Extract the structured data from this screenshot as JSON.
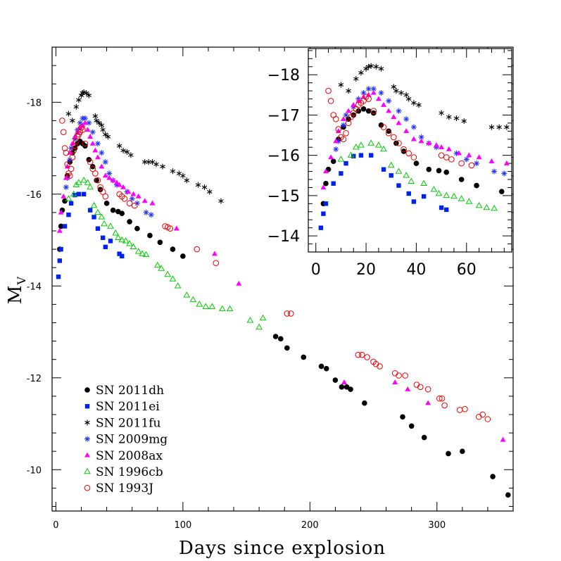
{
  "chart_data": {
    "type": "scatter",
    "xlabel": "Days since explosion",
    "ylabel": "M",
    "ylabel_subscript": "V",
    "xlim": [
      -3,
      360
    ],
    "ylim": [
      -9.1,
      -19.2
    ],
    "y_inverted": true,
    "xticks": [
      0,
      100,
      200,
      300
    ],
    "yticks": [
      -10,
      -12,
      -14,
      -16,
      -18
    ],
    "legend_position": "bottom-left",
    "series": [
      {
        "name": "SN 2011dh",
        "marker": "filled-circle",
        "color": "#000000",
        "points": [
          [
            3,
            -14.8
          ],
          [
            4,
            -15.3
          ],
          [
            5,
            -15.65
          ],
          [
            7,
            -15.85
          ],
          [
            9,
            -16.4
          ],
          [
            11,
            -16.7
          ],
          [
            13,
            -16.9
          ],
          [
            15,
            -17.0
          ],
          [
            17,
            -17.1
          ],
          [
            19,
            -17.15
          ],
          [
            21,
            -17.1
          ],
          [
            23,
            -17.05
          ],
          [
            26,
            -16.75
          ],
          [
            29,
            -16.6
          ],
          [
            32,
            -16.3
          ],
          [
            35,
            -16.1
          ],
          [
            40,
            -15.8
          ],
          [
            45,
            -15.65
          ],
          [
            49,
            -15.62
          ],
          [
            52,
            -15.58
          ],
          [
            58,
            -15.4
          ],
          [
            64,
            -15.25
          ],
          [
            74,
            -15.1
          ],
          [
            82,
            -14.95
          ],
          [
            92,
            -14.8
          ],
          [
            100,
            -14.65
          ],
          [
            173,
            -12.9
          ],
          [
            177,
            -12.85
          ],
          [
            182,
            -12.65
          ],
          [
            195,
            -12.45
          ],
          [
            209,
            -12.25
          ],
          [
            213,
            -12.2
          ],
          [
            220,
            -11.95
          ],
          [
            225,
            -11.8
          ],
          [
            229,
            -11.8
          ],
          [
            232,
            -11.75
          ],
          [
            243,
            -11.45
          ],
          [
            273,
            -11.15
          ],
          [
            280,
            -10.95
          ],
          [
            290,
            -10.7
          ],
          [
            309,
            -10.35
          ],
          [
            320,
            -10.4
          ],
          [
            344,
            -9.85
          ],
          [
            356,
            -9.45
          ]
        ]
      },
      {
        "name": "SN 2011ei",
        "marker": "filled-square",
        "color": "#0022ee",
        "points": [
          [
            2,
            -14.2
          ],
          [
            3,
            -14.55
          ],
          [
            4,
            -14.8
          ],
          [
            7,
            -15.3
          ],
          [
            10,
            -15.55
          ],
          [
            12,
            -15.8
          ],
          [
            15,
            -15.98
          ],
          [
            18,
            -16.0
          ],
          [
            22,
            -16.0
          ],
          [
            27,
            -15.65
          ],
          [
            30,
            -15.5
          ],
          [
            33,
            -15.25
          ],
          [
            37,
            -15.05
          ],
          [
            39,
            -14.85
          ],
          [
            43,
            -14.98
          ],
          [
            50,
            -14.7
          ],
          [
            52,
            -14.65
          ]
        ]
      },
      {
        "name": "SN 2011fu",
        "marker": "asterisk",
        "color": "#000000",
        "points": [
          [
            10,
            -17.75
          ],
          [
            13,
            -17.6
          ],
          [
            16,
            -17.9
          ],
          [
            18,
            -18.05
          ],
          [
            20,
            -18.15
          ],
          [
            21,
            -18.2
          ],
          [
            22,
            -18.22
          ],
          [
            24,
            -18.2
          ],
          [
            26,
            -18.15
          ],
          [
            31,
            -17.7
          ],
          [
            32,
            -17.6
          ],
          [
            34,
            -17.55
          ],
          [
            36,
            -17.5
          ],
          [
            37,
            -17.4
          ],
          [
            39,
            -17.3
          ],
          [
            41,
            -17.25
          ],
          [
            50,
            -17.05
          ],
          [
            53,
            -16.95
          ],
          [
            56,
            -16.92
          ],
          [
            59,
            -16.85
          ],
          [
            70,
            -16.7
          ],
          [
            73,
            -16.7
          ],
          [
            76,
            -16.7
          ],
          [
            79,
            -16.65
          ],
          [
            84,
            -16.6
          ],
          [
            92,
            -16.5
          ],
          [
            97,
            -16.45
          ],
          [
            100,
            -16.4
          ],
          [
            103,
            -16.3
          ],
          [
            112,
            -16.2
          ],
          [
            117,
            -16.15
          ],
          [
            121,
            -16.05
          ],
          [
            130,
            -15.85
          ]
        ]
      },
      {
        "name": "SN 2009mg",
        "marker": "star",
        "color": "#2233ff",
        "points": [
          [
            8,
            -16.15
          ],
          [
            9,
            -16.35
          ],
          [
            11,
            -16.75
          ],
          [
            12,
            -17.0
          ],
          [
            15,
            -17.2
          ],
          [
            17,
            -17.4
          ],
          [
            19,
            -17.55
          ],
          [
            21,
            -17.65
          ],
          [
            23,
            -17.65
          ],
          [
            26,
            -17.55
          ],
          [
            29,
            -17.35
          ],
          [
            33,
            -17.1
          ],
          [
            36,
            -16.9
          ],
          [
            39,
            -16.7
          ],
          [
            42,
            -16.45
          ],
          [
            45,
            -16.3
          ],
          [
            48,
            -16.2
          ],
          [
            56,
            -16.05
          ],
          [
            60,
            -15.9
          ],
          [
            64,
            -15.8
          ],
          [
            71,
            -15.6
          ],
          [
            75,
            -15.55
          ]
        ]
      },
      {
        "name": "SN 2008ax",
        "marker": "filled-triangle",
        "color": "#ff00ff",
        "points": [
          [
            3,
            -15.2
          ],
          [
            4,
            -15.6
          ],
          [
            6,
            -15.95
          ],
          [
            8,
            -16.35
          ],
          [
            9,
            -16.6
          ],
          [
            11,
            -16.9
          ],
          [
            13,
            -17.1
          ],
          [
            15,
            -17.25
          ],
          [
            17,
            -17.35
          ],
          [
            19,
            -17.45
          ],
          [
            21,
            -17.5
          ],
          [
            23,
            -17.55
          ],
          [
            25,
            -17.4
          ],
          [
            27,
            -17.25
          ],
          [
            29,
            -17.1
          ],
          [
            31,
            -16.95
          ],
          [
            33,
            -16.8
          ],
          [
            36,
            -16.6
          ],
          [
            39,
            -16.4
          ],
          [
            42,
            -16.35
          ],
          [
            45,
            -16.3
          ],
          [
            48,
            -16.25
          ],
          [
            50,
            -16.2
          ],
          [
            53,
            -16.15
          ],
          [
            57,
            -16.05
          ],
          [
            61,
            -16.0
          ],
          [
            65,
            -15.95
          ],
          [
            70,
            -15.85
          ],
          [
            76,
            -15.8
          ],
          [
            95,
            -15.25
          ],
          [
            125,
            -14.7
          ],
          [
            144,
            -14.05
          ],
          [
            227,
            -11.9
          ],
          [
            267,
            -11.9
          ],
          [
            277,
            -11.75
          ],
          [
            293,
            -11.45
          ],
          [
            352,
            -10.65
          ]
        ]
      },
      {
        "name": "SN 1996cb",
        "marker": "open-triangle",
        "color": "#00cc00",
        "points": [
          [
            10,
            -15.9
          ],
          [
            14,
            -16.0
          ],
          [
            16,
            -16.2
          ],
          [
            18,
            -16.25
          ],
          [
            22,
            -16.3
          ],
          [
            25,
            -16.25
          ],
          [
            27,
            -16.15
          ],
          [
            30,
            -15.75
          ],
          [
            33,
            -15.6
          ],
          [
            36,
            -15.5
          ],
          [
            38,
            -15.35
          ],
          [
            43,
            -15.3
          ],
          [
            47,
            -15.15
          ],
          [
            49,
            -15.05
          ],
          [
            52,
            -15.0
          ],
          [
            55,
            -14.98
          ],
          [
            58,
            -14.92
          ],
          [
            61,
            -14.85
          ],
          [
            65,
            -14.75
          ],
          [
            68,
            -14.7
          ],
          [
            71,
            -14.68
          ],
          [
            80,
            -14.45
          ],
          [
            83,
            -14.38
          ],
          [
            88,
            -14.25
          ],
          [
            92,
            -14.15
          ],
          [
            96,
            -14.0
          ],
          [
            103,
            -13.8
          ],
          [
            108,
            -13.7
          ],
          [
            113,
            -13.6
          ],
          [
            118,
            -13.55
          ],
          [
            123,
            -13.55
          ],
          [
            131,
            -13.5
          ],
          [
            137,
            -13.5
          ],
          [
            153,
            -13.25
          ],
          [
            160,
            -13.1
          ],
          [
            163,
            -13.3
          ]
        ]
      },
      {
        "name": "SN 1993J",
        "marker": "open-circle",
        "color": "#ee0000",
        "points": [
          [
            5,
            -17.6
          ],
          [
            6,
            -17.35
          ],
          [
            7,
            -17.0
          ],
          [
            8,
            -16.9
          ],
          [
            9,
            -16.65
          ],
          [
            10,
            -16.45
          ],
          [
            11,
            -16.4
          ],
          [
            12,
            -16.55
          ],
          [
            13,
            -16.8
          ],
          [
            14,
            -16.95
          ],
          [
            15,
            -17.05
          ],
          [
            16,
            -17.15
          ],
          [
            17,
            -17.25
          ],
          [
            18,
            -17.3
          ],
          [
            19,
            -17.35
          ],
          [
            20,
            -17.45
          ],
          [
            21,
            -17.4
          ],
          [
            23,
            -17.1
          ],
          [
            27,
            -16.7
          ],
          [
            29,
            -16.55
          ],
          [
            31,
            -16.45
          ],
          [
            33,
            -16.3
          ],
          [
            35,
            -16.15
          ],
          [
            37,
            -16.05
          ],
          [
            39,
            -15.95
          ],
          [
            50,
            -16.0
          ],
          [
            52,
            -15.95
          ],
          [
            54,
            -15.9
          ],
          [
            58,
            -15.8
          ],
          [
            62,
            -15.75
          ],
          [
            86,
            -15.3
          ],
          [
            88,
            -15.28
          ],
          [
            90,
            -15.25
          ],
          [
            111,
            -14.8
          ],
          [
            126,
            -14.5
          ],
          [
            182,
            -13.4
          ],
          [
            185,
            -13.4
          ],
          [
            238,
            -12.5
          ],
          [
            241,
            -12.5
          ],
          [
            245,
            -12.45
          ],
          [
            250,
            -12.35
          ],
          [
            252,
            -12.3
          ],
          [
            255,
            -12.25
          ],
          [
            267,
            -12.1
          ],
          [
            270,
            -12.05
          ],
          [
            275,
            -12.05
          ],
          [
            284,
            -11.85
          ],
          [
            287,
            -11.8
          ],
          [
            293,
            -11.75
          ],
          [
            302,
            -11.55
          ],
          [
            304,
            -11.55
          ],
          [
            306,
            -11.4
          ],
          [
            318,
            -11.3
          ],
          [
            322,
            -11.32
          ],
          [
            333,
            -11.15
          ],
          [
            336,
            -11.2
          ],
          [
            340,
            -11.1
          ]
        ]
      }
    ],
    "inset": {
      "xlim": [
        -3,
        78
      ],
      "ylim": [
        -13.6,
        -18.65
      ],
      "xticks": [
        0,
        20,
        40,
        60
      ],
      "yticks": [
        -14,
        -15,
        -16,
        -17,
        -18
      ]
    }
  }
}
